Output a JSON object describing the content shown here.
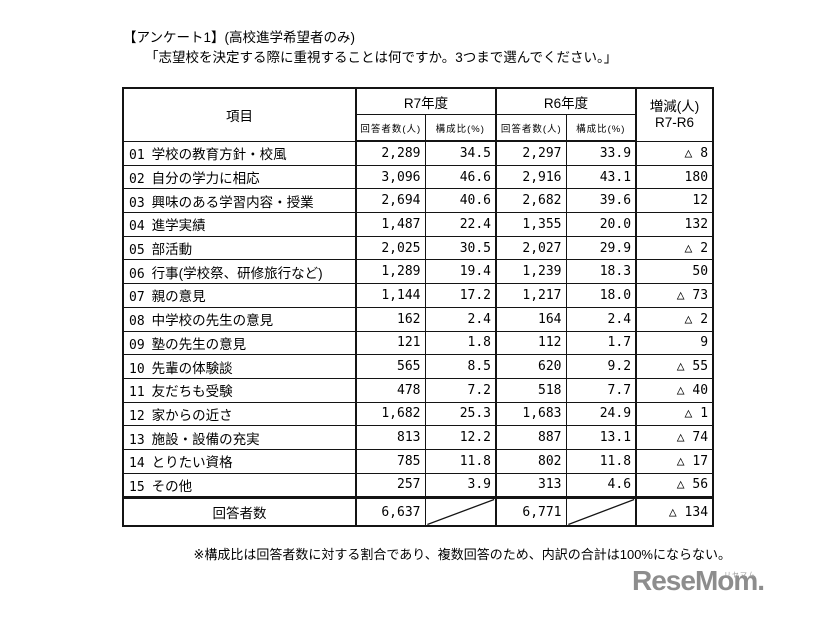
{
  "page": {
    "title": "【アンケート1】(高校進学希望者のみ)",
    "question": "「志望校を決定する際に重視することは何ですか。3つまで選んでください。」",
    "footnote": "※構成比は回答者数に対する割合であり、複数回答のため、内訳の合計は100%にならない。"
  },
  "table": {
    "headers": {
      "item": "項目",
      "r7": "R7年度",
      "r6": "R6年度",
      "diff_line1": "増減(人)",
      "diff_line2": "R7-R6",
      "respondents": "回答者数(人)",
      "ratio": "構成比(%)"
    },
    "rows": [
      {
        "no": "01",
        "label": "学校の教育方針・校風",
        "r7_count": "2,289",
        "r7_ratio": "34.5",
        "r6_count": "2,297",
        "r6_ratio": "33.9",
        "diff": "△ 8"
      },
      {
        "no": "02",
        "label": "自分の学力に相応",
        "r7_count": "3,096",
        "r7_ratio": "46.6",
        "r6_count": "2,916",
        "r6_ratio": "43.1",
        "diff": "180"
      },
      {
        "no": "03",
        "label": "興味のある学習内容・授業",
        "r7_count": "2,694",
        "r7_ratio": "40.6",
        "r6_count": "2,682",
        "r6_ratio": "39.6",
        "diff": "12"
      },
      {
        "no": "04",
        "label": "進学実績",
        "r7_count": "1,487",
        "r7_ratio": "22.4",
        "r6_count": "1,355",
        "r6_ratio": "20.0",
        "diff": "132"
      },
      {
        "no": "05",
        "label": "部活動",
        "r7_count": "2,025",
        "r7_ratio": "30.5",
        "r6_count": "2,027",
        "r6_ratio": "29.9",
        "diff": "△ 2"
      },
      {
        "no": "06",
        "label": "行事(学校祭、研修旅行など)",
        "r7_count": "1,289",
        "r7_ratio": "19.4",
        "r6_count": "1,239",
        "r6_ratio": "18.3",
        "diff": "50"
      },
      {
        "no": "07",
        "label": "親の意見",
        "r7_count": "1,144",
        "r7_ratio": "17.2",
        "r6_count": "1,217",
        "r6_ratio": "18.0",
        "diff": "△ 73"
      },
      {
        "no": "08",
        "label": "中学校の先生の意見",
        "r7_count": "162",
        "r7_ratio": "2.4",
        "r6_count": "164",
        "r6_ratio": "2.4",
        "diff": "△ 2"
      },
      {
        "no": "09",
        "label": "塾の先生の意見",
        "r7_count": "121",
        "r7_ratio": "1.8",
        "r6_count": "112",
        "r6_ratio": "1.7",
        "diff": "9"
      },
      {
        "no": "10",
        "label": "先輩の体験談",
        "r7_count": "565",
        "r7_ratio": "8.5",
        "r6_count": "620",
        "r6_ratio": "9.2",
        "diff": "△ 55"
      },
      {
        "no": "11",
        "label": "友だちも受験",
        "r7_count": "478",
        "r7_ratio": "7.2",
        "r6_count": "518",
        "r6_ratio": "7.7",
        "diff": "△ 40"
      },
      {
        "no": "12",
        "label": "家からの近さ",
        "r7_count": "1,682",
        "r7_ratio": "25.3",
        "r6_count": "1,683",
        "r6_ratio": "24.9",
        "diff": "△ 1"
      },
      {
        "no": "13",
        "label": "施設・設備の充実",
        "r7_count": "813",
        "r7_ratio": "12.2",
        "r6_count": "887",
        "r6_ratio": "13.1",
        "diff": "△ 74"
      },
      {
        "no": "14",
        "label": "とりたい資格",
        "r7_count": "785",
        "r7_ratio": "11.8",
        "r6_count": "802",
        "r6_ratio": "11.8",
        "diff": "△ 17"
      },
      {
        "no": "15",
        "label": "その他",
        "r7_count": "257",
        "r7_ratio": "3.9",
        "r6_count": "313",
        "r6_ratio": "4.6",
        "diff": "△ 56"
      }
    ],
    "total": {
      "label": "回答者数",
      "r7_count": "6,637",
      "r6_count": "6,771",
      "diff": "△ 134"
    }
  },
  "logo": {
    "text": "ReseMom.",
    "ruby": "リセマム",
    "color": "#8d8d8d"
  }
}
